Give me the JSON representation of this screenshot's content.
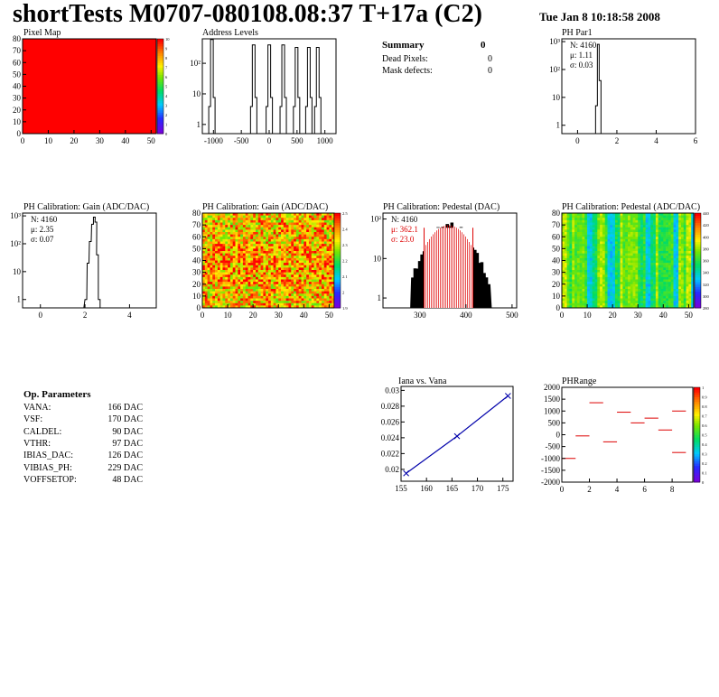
{
  "header": {
    "title": "shortTests M0707-080108.08:37 T+17a (C2)",
    "date": "Tue Jan  8 10:18:58 2008"
  },
  "summary": {
    "title": "Summary",
    "title_value": "0",
    "rows": [
      {
        "label": "Dead Pixels:",
        "value": "0"
      },
      {
        "label": "Mask defects:",
        "value": "0"
      }
    ]
  },
  "op_params": {
    "title": "Op. Parameters",
    "rows": [
      {
        "label": "VANA:",
        "value": "166 DAC"
      },
      {
        "label": "VSF:",
        "value": "170 DAC"
      },
      {
        "label": "CALDEL:",
        "value": "90 DAC"
      },
      {
        "label": "VTHR:",
        "value": "97 DAC"
      },
      {
        "label": "IBIAS_DAC:",
        "value": "126 DAC"
      },
      {
        "label": "VIBIAS_PH:",
        "value": "229 DAC"
      },
      {
        "label": "VOFFSETOP:",
        "value": "48 DAC"
      }
    ]
  },
  "colors": {
    "red": "#ff0000",
    "line": "#000000",
    "fit": "#0000aa"
  },
  "chart_data": [
    {
      "id": "pixel-map",
      "type": "heatmap",
      "title": "Pixel Map",
      "xlim": [
        0,
        52
      ],
      "ylim": [
        0,
        80
      ],
      "xticks": [
        "0",
        "10",
        "20",
        "30",
        "40",
        "50"
      ],
      "yticks": [
        "0",
        "10",
        "20",
        "30",
        "40",
        "50",
        "60",
        "70",
        "80"
      ],
      "zticks": [
        "0",
        "1",
        "2",
        "3",
        "4",
        "5",
        "6",
        "7",
        "8",
        "9",
        "10"
      ],
      "uniform_value": 10
    },
    {
      "id": "address-levels",
      "type": "bar",
      "title": "Address Levels",
      "xlim": [
        -1200,
        1200
      ],
      "yscale": "log",
      "xticks": [
        "-1000",
        "-500",
        "0",
        "500",
        "1000"
      ],
      "yticks": [
        "1",
        "10",
        "10²"
      ],
      "peaks": [
        -1020,
        -270,
        10,
        260,
        500,
        720,
        880
      ],
      "peak_counts": [
        600,
        400,
        400,
        400,
        330,
        330,
        330
      ]
    },
    {
      "id": "ph-par1",
      "type": "bar",
      "title": "PH Par1",
      "yscale": "log",
      "xticks": [
        "0",
        "2",
        "4",
        "6"
      ],
      "yticks": [
        "1",
        "10",
        "10²",
        "10³"
      ],
      "stats": {
        "N": "N: 4160",
        "mu": "μ: 1.11",
        "sigma": "σ: 0.03"
      },
      "peak_x": 1.1,
      "peak_count": 800
    },
    {
      "id": "ph-gain-hist",
      "type": "bar",
      "title": "PH Calibration: Gain (ADC/DAC)",
      "yscale": "log",
      "xticks": [
        "0",
        "2",
        "4"
      ],
      "yticks": [
        "1",
        "10",
        "10²",
        "10³"
      ],
      "stats": {
        "N": "N: 4160",
        "mu": "μ: 2.35",
        "sigma": "σ: 0.07"
      },
      "peak_x": 2.35,
      "peak_count": 900
    },
    {
      "id": "ph-gain-map",
      "type": "heatmap",
      "title": "PH Calibration: Gain (ADC/DAC)",
      "xticks": [
        "0",
        "10",
        "20",
        "30",
        "40",
        "50"
      ],
      "yticks": [
        "0",
        "10",
        "20",
        "30",
        "40",
        "50",
        "60",
        "70",
        "80"
      ],
      "zticks": [
        "1.9",
        "2",
        "2.1",
        "2.2",
        "2.3",
        "2.4",
        "2.5"
      ]
    },
    {
      "id": "ph-pedestal-hist",
      "type": "bar",
      "title": "PH Calibration: Pedestal (DAC)",
      "yscale": "log",
      "xticks": [
        "300",
        "400",
        "500"
      ],
      "yticks": [
        "1",
        "10",
        "10²"
      ],
      "stats": {
        "N": "N: 4160",
        "mu": "μ: 362.1",
        "sigma": "σ: 23.0"
      },
      "mean": 362.1,
      "sigma": 23.0
    },
    {
      "id": "ph-pedestal-map",
      "type": "heatmap",
      "title": "PH Calibration: Pedestal (ADC/DAC)",
      "xticks": [
        "0",
        "10",
        "20",
        "30",
        "40",
        "50"
      ],
      "yticks": [
        "0",
        "10",
        "20",
        "30",
        "40",
        "50",
        "60",
        "70",
        "80"
      ],
      "zticks": [
        "280",
        "300",
        "320",
        "340",
        "360",
        "380",
        "400",
        "420",
        "440"
      ]
    },
    {
      "id": "iana-vana",
      "type": "line",
      "title": "Iana vs. Vana",
      "xlim": [
        155,
        177
      ],
      "ylim": [
        0.0185,
        0.0305
      ],
      "xticks": [
        "155",
        "160",
        "165",
        "170",
        "175"
      ],
      "yticks": [
        "0.02",
        "0.022",
        "0.024",
        "0.026",
        "0.028",
        "0.03"
      ],
      "x": [
        156,
        166,
        176
      ],
      "y": [
        0.0195,
        0.0242,
        0.0293
      ]
    },
    {
      "id": "ph-range",
      "type": "scatter",
      "title": "PHRange",
      "xlim": [
        0,
        9.5
      ],
      "ylim": [
        -2000,
        2000
      ],
      "xticks": [
        "0",
        "2",
        "4",
        "6",
        "8"
      ],
      "yticks": [
        "-2000",
        "-1500",
        "-1000",
        "-500",
        "0",
        "500",
        "1000",
        "1500",
        "2000"
      ],
      "zticks": [
        "0",
        "0.1",
        "0.2",
        "0.3",
        "0.4",
        "0.5",
        "0.6",
        "0.7",
        "0.8",
        "0.9",
        "1"
      ],
      "segments": [
        {
          "x0": 0,
          "x1": 1,
          "y": -1000
        },
        {
          "x0": 1,
          "x1": 2,
          "y": -50
        },
        {
          "x0": 2,
          "x1": 3,
          "y": 1350
        },
        {
          "x0": 3,
          "x1": 4,
          "y": -300
        },
        {
          "x0": 4,
          "x1": 5,
          "y": 950
        },
        {
          "x0": 5,
          "x1": 6,
          "y": 500
        },
        {
          "x0": 6,
          "x1": 7,
          "y": 700
        },
        {
          "x0": 7,
          "x1": 8,
          "y": 200
        },
        {
          "x0": 8,
          "x1": 9,
          "y": 1000
        },
        {
          "x0": 8,
          "x1": 9,
          "y": -750
        }
      ]
    }
  ]
}
